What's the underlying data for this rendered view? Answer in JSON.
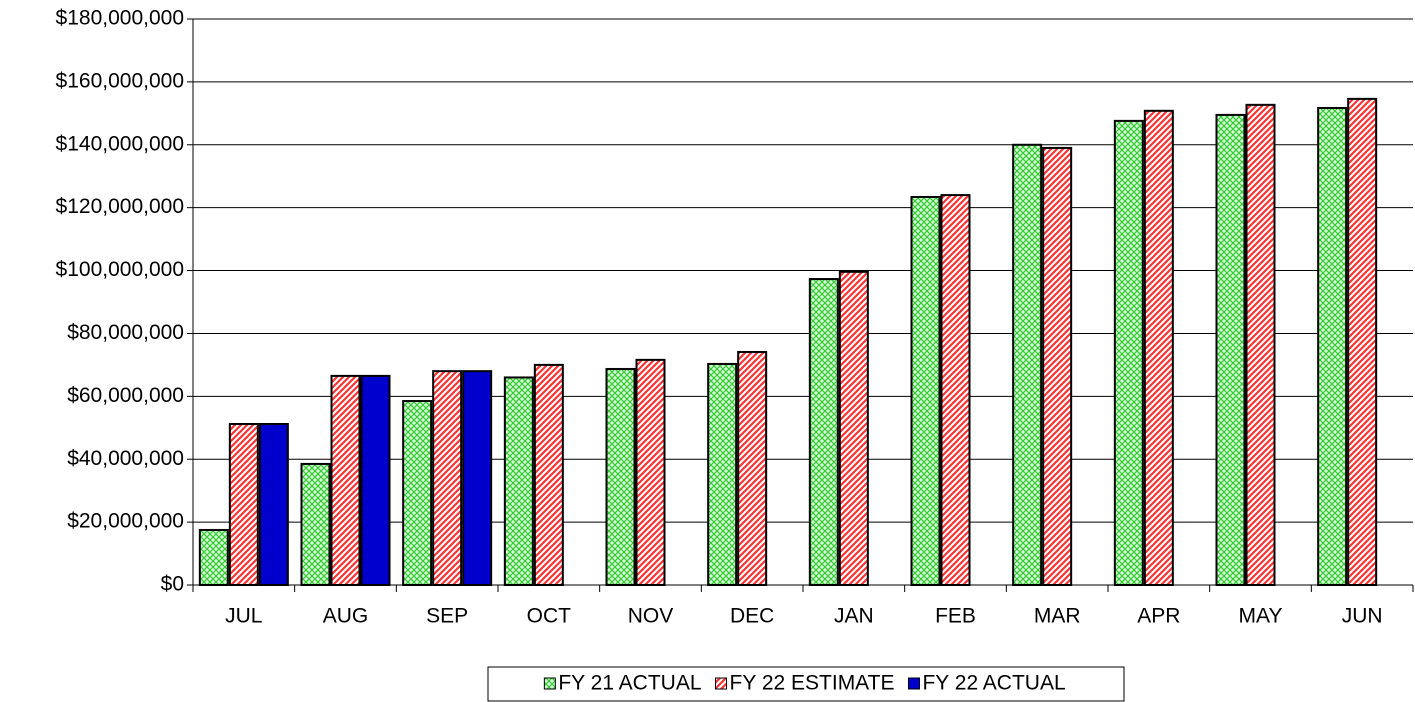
{
  "chart_data": {
    "type": "bar",
    "categories": [
      "JUL",
      "AUG",
      "SEP",
      "OCT",
      "NOV",
      "DEC",
      "JAN",
      "FEB",
      "MAR",
      "APR",
      "MAY",
      "JUN"
    ],
    "series": [
      {
        "name": "FY 21 ACTUAL",
        "color": "#33cc33",
        "hatch": "cross",
        "values": [
          17500000,
          38500000,
          58500000,
          66000000,
          68700000,
          70300000,
          97300000,
          123400000,
          140000000,
          147600000,
          149500000,
          151700000
        ]
      },
      {
        "name": "FY 22 ESTIMATE",
        "color": "#ff3333",
        "hatch": "diagonal",
        "values": [
          51200000,
          66500000,
          68000000,
          70000000,
          71600000,
          74100000,
          99600000,
          124000000,
          139000000,
          150800000,
          152700000,
          154600000
        ]
      },
      {
        "name": "FY 22 ACTUAL",
        "color": "#0000cc",
        "hatch": "solid",
        "values": [
          51200000,
          66500000,
          68000000,
          null,
          null,
          null,
          null,
          null,
          null,
          null,
          null,
          null
        ]
      }
    ],
    "ylim": [
      0,
      180000000
    ],
    "yticks": [
      {
        "value": 0,
        "label": "$0"
      },
      {
        "value": 20000000,
        "label": "$20,000,000"
      },
      {
        "value": 40000000,
        "label": "$40,000,000"
      },
      {
        "value": 60000000,
        "label": "$60,000,000"
      },
      {
        "value": 80000000,
        "label": "$80,000,000"
      },
      {
        "value": 100000000,
        "label": "$100,000,000"
      },
      {
        "value": 120000000,
        "label": "$120,000,000"
      },
      {
        "value": 140000000,
        "label": "$140,000,000"
      },
      {
        "value": 160000000,
        "label": "$160,000,000"
      },
      {
        "value": 180000000,
        "label": "$180,000,000"
      }
    ],
    "grid": true,
    "legend": "bottom"
  }
}
